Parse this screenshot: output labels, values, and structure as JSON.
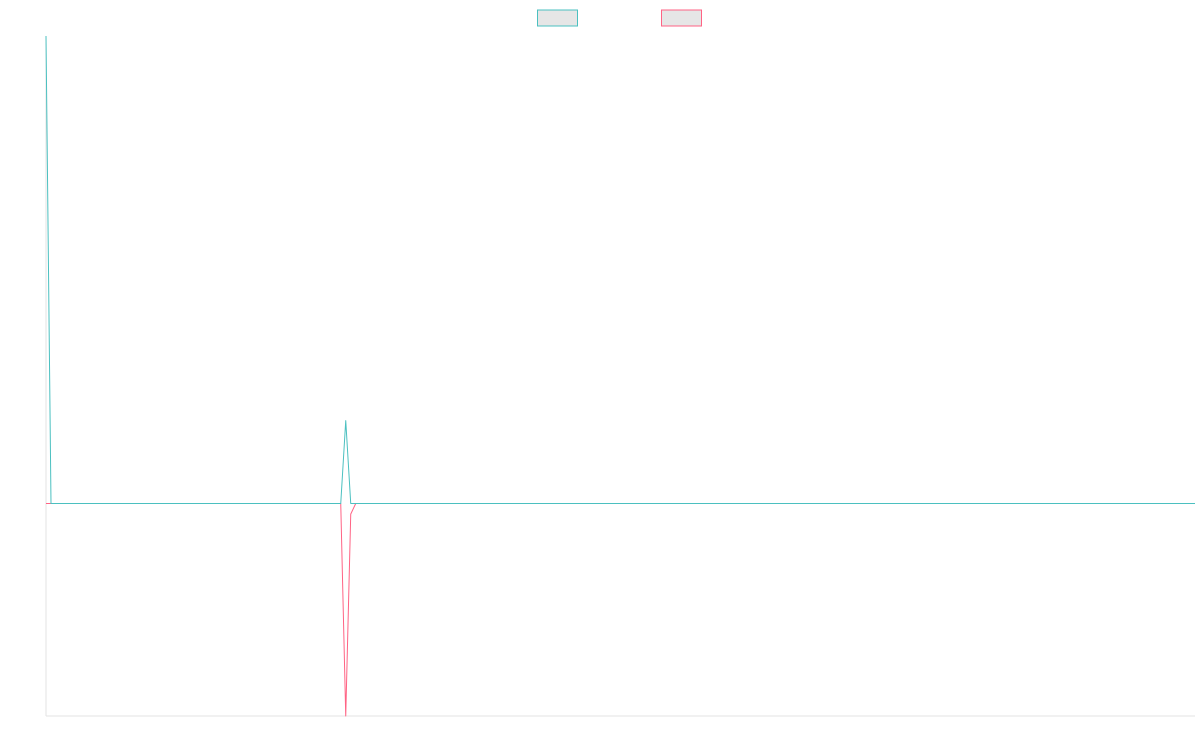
{
  "chart_data": {
    "type": "line",
    "title": "",
    "xlabel": "",
    "ylabel": "",
    "x": [
      0,
      1,
      2,
      3,
      4,
      5,
      6,
      7,
      8,
      9,
      10,
      11,
      12,
      13,
      14,
      15,
      16,
      17,
      18,
      19,
      20,
      21,
      22,
      23,
      24,
      25,
      26,
      27,
      28,
      29,
      30,
      31,
      32,
      33,
      34,
      35,
      36,
      37,
      38,
      39,
      40,
      41,
      42,
      43,
      44,
      45,
      46,
      47,
      48,
      49,
      50,
      51,
      52,
      53,
      54,
      55,
      56,
      57,
      58,
      59,
      60,
      61,
      62,
      63,
      64,
      65,
      66,
      67,
      68,
      69,
      70,
      71,
      72,
      73,
      74,
      75,
      76,
      77,
      78,
      79,
      80,
      81,
      82,
      83,
      84,
      85,
      86,
      87,
      88,
      89,
      90,
      91,
      92,
      93,
      94,
      95,
      96,
      97,
      98,
      99,
      100,
      101,
      102,
      103,
      104,
      105,
      106,
      107,
      108,
      109,
      110,
      111,
      112,
      113,
      114,
      115,
      116,
      117,
      118,
      119,
      120,
      121,
      122,
      123,
      124,
      125,
      126,
      127,
      128,
      129,
      130,
      131,
      132,
      133,
      134,
      135,
      136,
      137,
      138,
      139,
      140,
      141,
      142,
      143,
      144,
      145,
      146,
      147,
      148,
      149,
      150,
      151,
      152,
      153,
      154,
      155,
      156,
      157,
      158,
      159,
      160,
      161,
      162,
      163,
      164,
      165,
      166,
      167,
      168,
      169,
      170,
      171,
      172,
      173,
      174,
      175,
      176,
      177,
      178,
      179,
      180,
      181,
      182,
      183,
      184,
      185,
      186,
      187,
      188,
      189,
      190,
      191,
      192,
      193,
      194,
      195,
      196,
      197,
      198,
      199,
      200,
      201,
      202,
      203,
      204,
      205,
      206,
      207,
      208,
      209,
      210,
      211,
      212,
      213,
      214,
      215,
      216,
      217,
      218,
      219,
      220,
      221,
      222,
      223,
      224,
      225,
      226,
      227,
      228,
      229,
      230
    ],
    "ylim": [
      -100,
      220
    ],
    "series": [
      {
        "color": "#4bc0c0",
        "sparse": {
          "0": 220,
          "1": 0,
          "59": 0,
          "60": 39,
          "61": 0
        }
      },
      {
        "color": "#ff6384",
        "sparse": {
          "0": 0,
          "59": 0,
          "60": -100,
          "61": -5,
          "62": 0
        }
      }
    ],
    "legend": {
      "position": "top",
      "items": [
        {
          "label": "",
          "color": "#4bc0c0",
          "fill": "#e6e6e6"
        },
        {
          "label": "",
          "color": "#ff6384",
          "fill": "#e6e6e6"
        }
      ]
    },
    "grid": false
  }
}
